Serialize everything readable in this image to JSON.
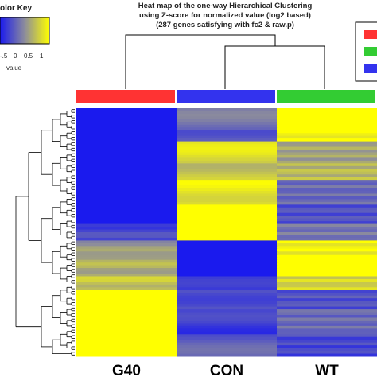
{
  "title_lines": [
    "Heat map of the one-way Hierarchical Clustering",
    "using Z-score for normalized value (log2 based)",
    "(287 genes satisfying with fc2 & raw.p)"
  ],
  "color_key": {
    "title": "Color Key",
    "visible_title": "olor Key",
    "ticks": [
      "-.5",
      "0",
      "0.5",
      "1"
    ],
    "xlabel": "value",
    "low_color": "#0000ee",
    "mid_color": "#808080",
    "high_color": "#ffff00"
  },
  "legend_colors": [
    "#ff3333",
    "#33cc33",
    "#3333ee"
  ],
  "chart_data": {
    "type": "heatmap",
    "title": "Heat map of the one-way Hierarchical Clustering using Z-score for normalized value (log2 based) (287 genes satisfying with fc2 & raw.p)",
    "columns": [
      "G40",
      "CON",
      "WT"
    ],
    "column_group_colors": [
      "#ff3333",
      "#3333ee",
      "#33cc33"
    ],
    "column_dendrogram": "(G40,(CON,WT))",
    "value_range": [
      -1,
      1
    ],
    "row_blocks": [
      {
        "rows": 8,
        "values": [
          -1.0,
          -0.2,
          1.0
        ]
      },
      {
        "rows": 4,
        "values": [
          -1.0,
          -0.4,
          0.9
        ]
      },
      {
        "rows": 8,
        "values": [
          -1.0,
          0.7,
          0.2
        ]
      },
      {
        "rows": 6,
        "values": [
          -1.0,
          0.5,
          0.4
        ]
      },
      {
        "rows": 9,
        "values": [
          -1.0,
          0.8,
          -0.3
        ]
      },
      {
        "rows": 7,
        "values": [
          -1.0,
          1.0,
          -0.5
        ]
      },
      {
        "rows": 6,
        "values": [
          -0.6,
          1.0,
          -0.2
        ]
      },
      {
        "rows": 5,
        "values": [
          0.1,
          -1.0,
          0.9
        ]
      },
      {
        "rows": 8,
        "values": [
          0.3,
          -1.0,
          1.0
        ]
      },
      {
        "rows": 5,
        "values": [
          0.5,
          -0.8,
          0.6
        ]
      },
      {
        "rows": 7,
        "values": [
          1.0,
          -0.5,
          -0.5
        ]
      },
      {
        "rows": 9,
        "values": [
          1.0,
          -0.7,
          -0.3
        ]
      },
      {
        "rows": 8,
        "values": [
          1.0,
          -0.4,
          -0.6
        ]
      }
    ]
  }
}
